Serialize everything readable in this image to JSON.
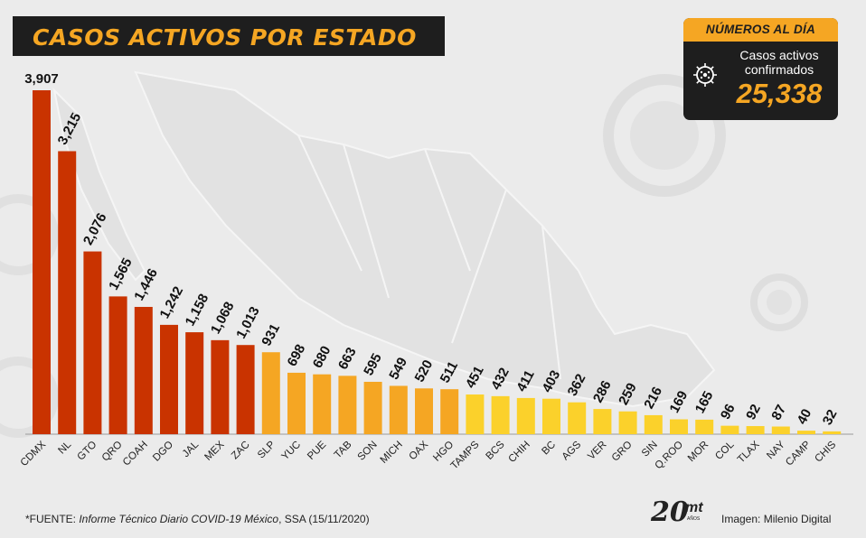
{
  "title": "CASOS ACTIVOS POR ESTADO",
  "stat_card": {
    "header": "NÚMEROS AL DÍA",
    "label_line1": "Casos activos",
    "label_line2": "confirmados",
    "value": "25,338",
    "icon": "virus-icon"
  },
  "footer": {
    "prefix": "*FUENTE: ",
    "source_title": "Informe Técnico Diario COVID-19 México",
    "suffix": ", SSA (15/11/2020)",
    "credit": "Imagen: Milenio Digital",
    "logo_20": "20",
    "logo_mt": "mt",
    "logo_small": "AÑOS"
  },
  "colors": {
    "background": "#ebebeb",
    "dark": "#1e1e1e",
    "accent": "#f5a623",
    "red": "#c93300",
    "orange": "#f5a623",
    "yellow": "#fbd12b"
  },
  "chart_data": {
    "type": "bar",
    "title": "CASOS ACTIVOS POR ESTADO",
    "xlabel": "",
    "ylabel": "",
    "grid": false,
    "categories": [
      "CDMX",
      "NL",
      "GTO",
      "QRO",
      "COAH",
      "DGO",
      "JAL",
      "MEX",
      "ZAC",
      "SLP",
      "YUC",
      "PUE",
      "TAB",
      "SON",
      "MICH",
      "OAX",
      "HGO",
      "TAMPS",
      "BCS",
      "CHIH",
      "BC",
      "AGS",
      "VER",
      "GRO",
      "SIN",
      "Q.ROO",
      "MOR",
      "COL",
      "TLAX",
      "NAY",
      "CAMP",
      "CHIS"
    ],
    "values": [
      3907,
      3215,
      2076,
      1565,
      1446,
      1242,
      1158,
      1068,
      1013,
      931,
      698,
      680,
      663,
      595,
      549,
      520,
      511,
      451,
      432,
      411,
      403,
      362,
      286,
      259,
      216,
      169,
      165,
      96,
      92,
      87,
      40,
      32
    ],
    "value_labels": [
      "3,907",
      "3,215",
      "2,076",
      "1,565",
      "1,446",
      "1,242",
      "1,158",
      "1,068",
      "1,013",
      "931",
      "698",
      "680",
      "663",
      "595",
      "549",
      "520",
      "511",
      "451",
      "432",
      "411",
      "403",
      "362",
      "286",
      "259",
      "216",
      "169",
      "165",
      "96",
      "92",
      "87",
      "40",
      "32"
    ],
    "bar_color_groups": [
      "red",
      "red",
      "red",
      "red",
      "red",
      "red",
      "red",
      "red",
      "red",
      "orange",
      "orange",
      "orange",
      "orange",
      "orange",
      "orange",
      "orange",
      "orange",
      "yellow",
      "yellow",
      "yellow",
      "yellow",
      "yellow",
      "yellow",
      "yellow",
      "yellow",
      "yellow",
      "yellow",
      "yellow",
      "yellow",
      "yellow",
      "yellow",
      "yellow"
    ],
    "ylim": [
      0,
      3907
    ]
  }
}
